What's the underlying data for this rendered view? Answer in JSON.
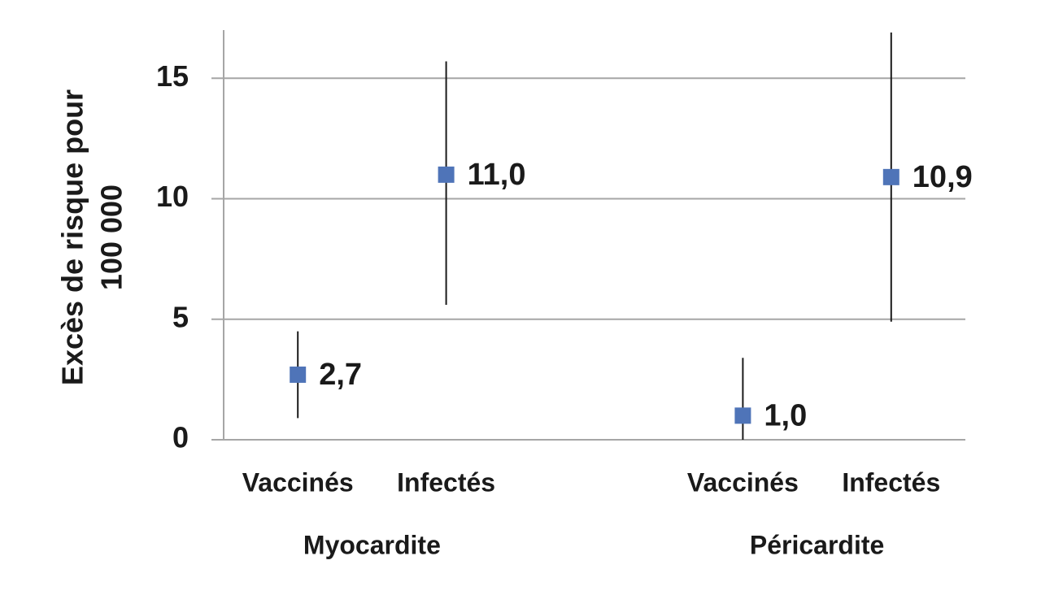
{
  "chart_data": {
    "type": "errorpoint",
    "y_label": [
      "Excès de risque pour",
      "100 000"
    ],
    "categories": [
      "Vaccinés",
      "Infectés",
      null,
      "Vaccinés",
      "Infectés"
    ],
    "groups": [
      "Myocardite",
      "Péricardite"
    ],
    "values": [
      2.7,
      11.0,
      null,
      1.0,
      10.9
    ],
    "value_labels": [
      "2,7",
      "11,0",
      null,
      "1,0",
      "10,9"
    ],
    "lower": [
      0.9,
      5.6,
      null,
      0,
      4.9
    ],
    "upper": [
      4.5,
      15.7,
      null,
      3.4,
      16.9
    ],
    "color": "#4f74b8",
    "ylim": [
      0,
      17
    ],
    "yticks": [
      0,
      5,
      10,
      15
    ],
    "grid": true
  }
}
